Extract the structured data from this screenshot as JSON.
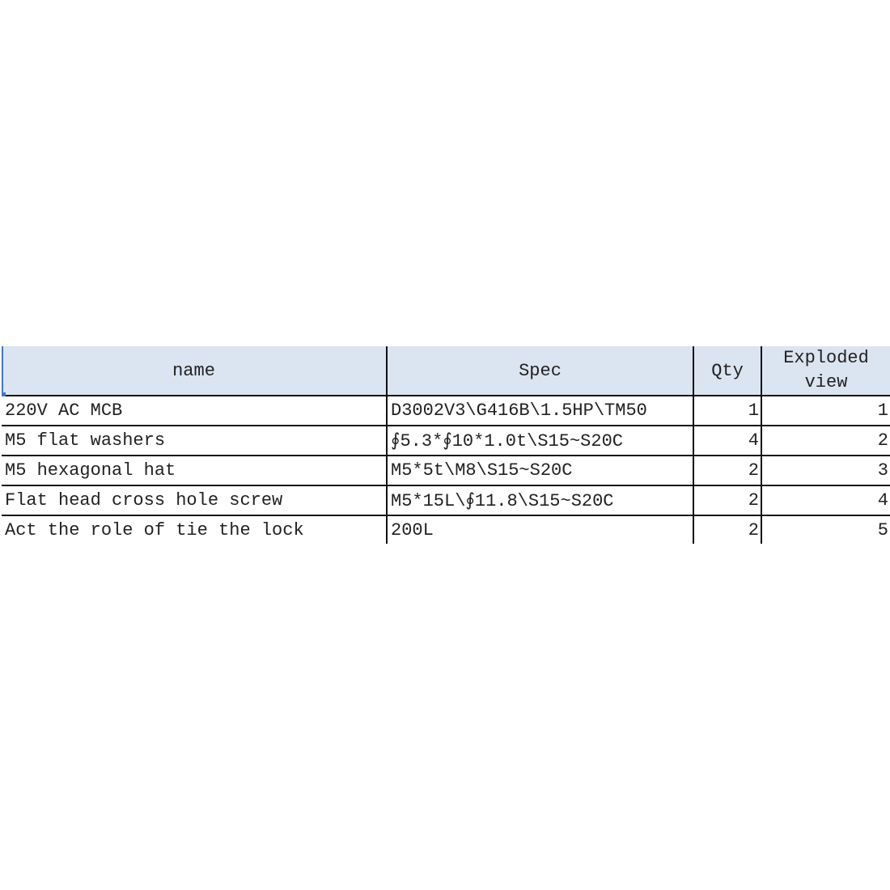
{
  "table": {
    "headers": {
      "name": "name",
      "spec": "Spec",
      "qty": "Qty",
      "exploded_line1": "Exploded",
      "exploded_line2": "view"
    },
    "rows": [
      {
        "name": "220V AC MCB",
        "spec": "D3002V3\\G416B\\1.5HP\\TM50",
        "qty": "1",
        "exploded": "1"
      },
      {
        "name": "M5 flat washers",
        "spec": "∮5.3*∮10*1.0t\\S15~S20C",
        "qty": "4",
        "exploded": "2"
      },
      {
        "name": "M5 hexagonal hat",
        "spec": "M5*5t\\M8\\S15~S20C",
        "qty": "2",
        "exploded": "3"
      },
      {
        "name": "Flat head cross hole screw",
        "spec": "M5*15L\\∮11.8\\S15~S20C",
        "qty": "2",
        "exploded": "4"
      },
      {
        "name": "Act the role of tie the lock",
        "spec": "200L",
        "qty": "2",
        "exploded": "5"
      }
    ],
    "header_bg": "#dbe4f1",
    "selection_color": "#3a78d4"
  }
}
